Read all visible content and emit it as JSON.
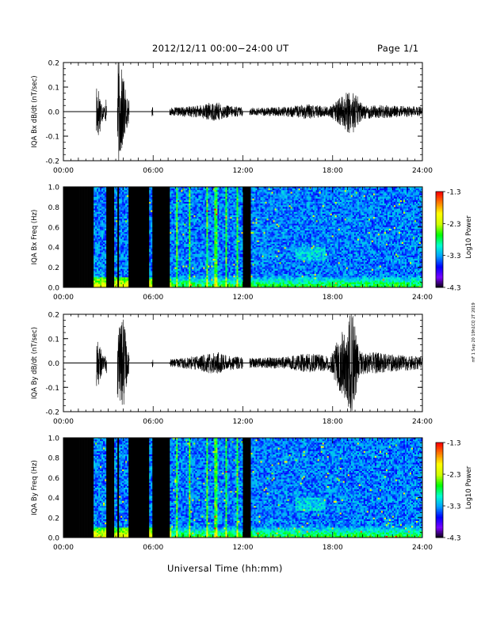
{
  "header": {
    "title": "2012/12/11  00:00−24:00 UT",
    "page": "Page 1/1"
  },
  "x_axis_title": "Universal Time (hh:mm)",
  "side_note": "mF 1 Sep 20 19h1CQ 2T 2019",
  "colorbar": {
    "label": "Log10 Power",
    "ticks": [
      "-1.3",
      "-2.3",
      "-3.3",
      "-4.3"
    ],
    "range": [
      -4.3,
      -1.3
    ],
    "colors": [
      "#000000",
      "#7a00ff",
      "#0000ff",
      "#00a0ff",
      "#00ffd0",
      "#00ff00",
      "#d0ff00",
      "#ffff00",
      "#ff8000",
      "#ff0000"
    ]
  },
  "chart_data": [
    {
      "type": "line",
      "ylabel": "IQA Bx dB/dt (nT/sec)",
      "ylim": [
        -0.2,
        0.2
      ],
      "yticks": [
        "0.2",
        "0.1",
        "0.0",
        "-0.1",
        "-0.2"
      ],
      "xticks": [
        "00:00",
        "06:00",
        "12:00",
        "18:00",
        "24:00"
      ],
      "xlim_hours": [
        0,
        24
      ],
      "gaps_hours": [
        [
          0,
          2.2
        ],
        [
          2.9,
          3.6
        ],
        [
          4.4,
          5.9
        ],
        [
          6.0,
          7.1
        ],
        [
          12.0,
          12.45
        ]
      ],
      "envelope": [
        {
          "t": 2.0,
          "a": 0.22
        },
        {
          "t": 2.3,
          "a": 0.12
        },
        {
          "t": 2.7,
          "a": 0.02
        },
        {
          "t": 3.7,
          "a": 0.22
        },
        {
          "t": 4.0,
          "a": 0.15
        },
        {
          "t": 4.3,
          "a": 0.05
        },
        {
          "t": 5.9,
          "a": 0.02
        },
        {
          "t": 7.1,
          "a": 0.015
        },
        {
          "t": 9.0,
          "a": 0.025
        },
        {
          "t": 10.2,
          "a": 0.04
        },
        {
          "t": 11.0,
          "a": 0.025
        },
        {
          "t": 12.5,
          "a": 0.015
        },
        {
          "t": 14.8,
          "a": 0.02
        },
        {
          "t": 16.4,
          "a": 0.03
        },
        {
          "t": 17.8,
          "a": 0.02
        },
        {
          "t": 19.3,
          "a": 0.1
        },
        {
          "t": 20.0,
          "a": 0.03
        },
        {
          "t": 24.0,
          "a": 0.02
        }
      ]
    },
    {
      "type": "heatmap",
      "ylabel": "IQA Bx Freq (Hz)",
      "ylim": [
        0.0,
        1.0
      ],
      "yticks": [
        "1.0",
        "0.8",
        "0.6",
        "0.4",
        "0.2",
        "0.0"
      ],
      "xticks": [
        "00:00",
        "06:00",
        "12:00",
        "18:00",
        "24:00"
      ],
      "xlim_hours": [
        0,
        24
      ],
      "gaps_hours": [
        [
          0,
          2.0
        ],
        [
          2.9,
          3.4
        ],
        [
          3.6,
          3.7
        ],
        [
          4.4,
          5.7
        ],
        [
          5.9,
          7.1
        ],
        [
          12.0,
          12.55
        ]
      ],
      "value_range": [
        -4.3,
        -1.3
      ]
    },
    {
      "type": "line",
      "ylabel": "IQA By dB/dt (nT/sec)",
      "ylim": [
        -0.2,
        0.2
      ],
      "yticks": [
        "0.2",
        "0.1",
        "0.0",
        "-0.1",
        "-0.2"
      ],
      "xticks": [
        "00:00",
        "06:00",
        "12:00",
        "18:00",
        "24:00"
      ],
      "xlim_hours": [
        0,
        24
      ],
      "gaps_hours": [
        [
          0,
          2.2
        ],
        [
          2.9,
          3.6
        ],
        [
          4.4,
          5.9
        ],
        [
          6.0,
          7.1
        ],
        [
          12.0,
          12.45
        ]
      ],
      "envelope": [
        {
          "t": 2.0,
          "a": 0.22
        },
        {
          "t": 2.3,
          "a": 0.1
        },
        {
          "t": 2.7,
          "a": 0.02
        },
        {
          "t": 3.7,
          "a": 0.15
        },
        {
          "t": 4.0,
          "a": 0.2
        },
        {
          "t": 4.3,
          "a": 0.05
        },
        {
          "t": 5.9,
          "a": 0.02
        },
        {
          "t": 7.1,
          "a": 0.015
        },
        {
          "t": 9.0,
          "a": 0.03
        },
        {
          "t": 10.2,
          "a": 0.05
        },
        {
          "t": 11.0,
          "a": 0.03
        },
        {
          "t": 12.5,
          "a": 0.02
        },
        {
          "t": 14.8,
          "a": 0.025
        },
        {
          "t": 16.4,
          "a": 0.04
        },
        {
          "t": 17.8,
          "a": 0.03
        },
        {
          "t": 19.3,
          "a": 0.22
        },
        {
          "t": 19.8,
          "a": 0.05
        },
        {
          "t": 24.0,
          "a": 0.025
        }
      ]
    },
    {
      "type": "heatmap",
      "ylabel": "IQA By Freq (Hz)",
      "ylim": [
        0.0,
        1.0
      ],
      "yticks": [
        "1.0",
        "0.8",
        "0.6",
        "0.4",
        "0.2",
        "0.0"
      ],
      "xticks": [
        "00:00",
        "06:00",
        "12:00",
        "18:00",
        "24:00"
      ],
      "xlim_hours": [
        0,
        24
      ],
      "gaps_hours": [
        [
          0,
          2.0
        ],
        [
          2.9,
          3.4
        ],
        [
          3.6,
          3.7
        ],
        [
          4.4,
          5.7
        ],
        [
          5.9,
          7.1
        ],
        [
          12.0,
          12.55
        ]
      ],
      "value_range": [
        -4.3,
        -1.3
      ]
    }
  ]
}
